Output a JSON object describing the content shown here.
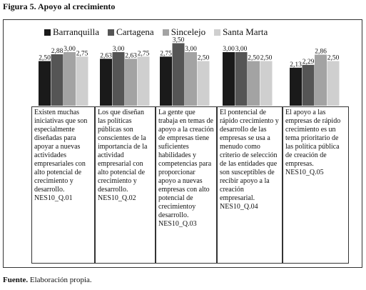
{
  "figure": {
    "title": "Figura 5. Apoyo al crecimiento",
    "source_label": "Fuente.",
    "source_text": " Elaboración propia."
  },
  "chart_data": {
    "type": "bar",
    "categories": [
      "NES10_Q.01",
      "NES10_Q.02",
      "NES10_Q.03",
      "NES10_Q.04",
      "NES10_Q.05"
    ],
    "series": [
      {
        "name": "Barranquilla",
        "color": "#1a1a1a",
        "values": [
          2.5,
          2.63,
          2.75,
          3.0,
          2.13
        ],
        "labels": [
          "2,50",
          "2,63",
          "2,75",
          "3,00",
          "2,13"
        ]
      },
      {
        "name": "Cartagena",
        "color": "#555555",
        "values": [
          2.88,
          3.0,
          3.5,
          3.0,
          2.29
        ],
        "labels": [
          "2,88",
          "3,00",
          "3,50",
          "3,00",
          "2,29"
        ]
      },
      {
        "name": "Sincelejo",
        "color": "#a3a3a3",
        "values": [
          3.0,
          2.63,
          3.0,
          2.5,
          2.86
        ],
        "labels": [
          "3,00",
          "2,63",
          "3,00",
          "2,50",
          "2,86"
        ]
      },
      {
        "name": "Santa Marta",
        "color": "#cfcfcf",
        "values": [
          2.75,
          2.75,
          2.5,
          2.5,
          2.5
        ],
        "labels": [
          "2,75",
          "2,75",
          "2,50",
          "2,50",
          "2,50"
        ]
      }
    ],
    "ylim": [
      0,
      3.8
    ],
    "grid": false,
    "legend_position": "top"
  },
  "columns": [
    {
      "text": "Existen muchas iniciativas que son especialmente diseñadas para apoyar a nuevas actividades empresariales con alto potencial de crecimiento y desarrollo.",
      "code": "NES10_Q.01"
    },
    {
      "text": "Los que diseñan las políticas públicas son conscientes de la importancia de la actividad empresarial con alto potencial de crecimiento y desarrollo.",
      "code": "NES10_Q.02"
    },
    {
      "text": "La gente que trabaja en temas de apoyo a la creación de empresas tiene suficientes habilidades y competencias para proporcionar apoyo a nuevas empresas con alto potencial de crecimientoy desarrollo.",
      "code": "NES10_Q.03"
    },
    {
      "text": "El pontencial de rápido crecimiento y desarrollo de las empresas se usa a menudo como criterio de selección de las entidades que son susceptibles de recibir apoyo a la creación empresarial.",
      "code": "NES10_Q.04"
    },
    {
      "text": "El apoyo a las empresas de rápido crecimiento es un tema prioritario de las política pública de creación de empresas.",
      "code": "NES10_Q.05"
    }
  ]
}
